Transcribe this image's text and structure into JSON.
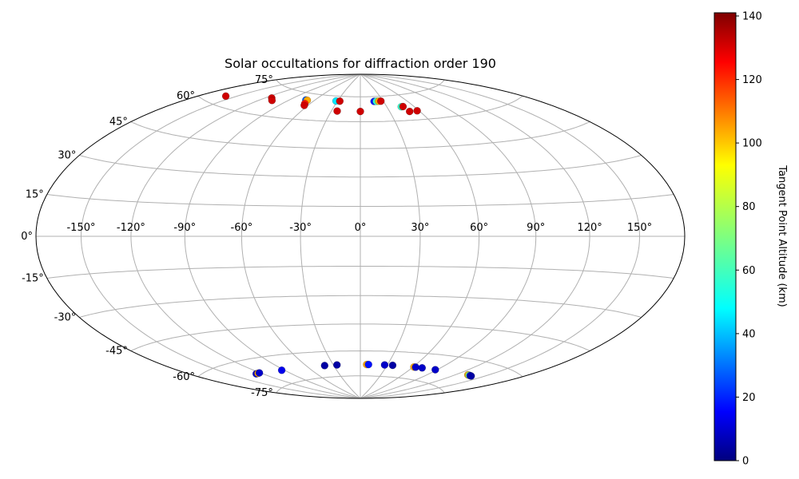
{
  "chart_data": {
    "type": "scatter",
    "projection": "hammer",
    "title": "Solar occultations for diffraction order 190",
    "lon_ticks": [
      -150,
      -120,
      -90,
      -60,
      -30,
      0,
      30,
      60,
      90,
      120,
      150
    ],
    "lon_tick_labels": [
      "-150°",
      "-120°",
      "-90°",
      "-60°",
      "-30°",
      "0°",
      "30°",
      "60°",
      "90°",
      "120°",
      "150°"
    ],
    "lat_ticks": [
      -75,
      -60,
      -45,
      -30,
      -15,
      0,
      15,
      30,
      45,
      60,
      75
    ],
    "lat_tick_labels": [
      "-75°",
      "-60°",
      "-45°",
      "-30°",
      "-15°",
      "0°",
      "15°",
      "30°",
      "45°",
      "60°",
      "75°"
    ],
    "grid": true,
    "colorbar": {
      "label": "Tangent Point Altitude (km)",
      "min": 0,
      "max": 141,
      "ticks": [
        0,
        20,
        40,
        60,
        80,
        100,
        120,
        140
      ],
      "tick_labels": [
        "0",
        "20",
        "40",
        "60",
        "80",
        "100",
        "120",
        "140"
      ],
      "colormap": "jet"
    },
    "points": [
      {
        "lon": -159,
        "lat": 64,
        "alt": 130
      },
      {
        "lon": -113,
        "lat": 69,
        "alt": 130
      },
      {
        "lon": -107,
        "lat": 68,
        "alt": 130
      },
      {
        "lon": -71,
        "lat": 71,
        "alt": 30
      },
      {
        "lon": -69,
        "lat": 71,
        "alt": 100
      },
      {
        "lon": -66,
        "lat": 69,
        "alt": 120
      },
      {
        "lon": -64,
        "lat": 68,
        "alt": 130
      },
      {
        "lon": -32,
        "lat": 72,
        "alt": 50
      },
      {
        "lon": -27,
        "lat": 72,
        "alt": 130
      },
      {
        "lon": -24,
        "lat": 66,
        "alt": 130
      },
      {
        "lon": 0,
        "lat": 66,
        "alt": 130
      },
      {
        "lon": 18,
        "lat": 72,
        "alt": 20
      },
      {
        "lon": 21,
        "lat": 72,
        "alt": 60
      },
      {
        "lon": 24,
        "lat": 72,
        "alt": 100
      },
      {
        "lon": 27,
        "lat": 72,
        "alt": 130
      },
      {
        "lon": 46,
        "lat": 68,
        "alt": 60
      },
      {
        "lon": 48,
        "lat": 68,
        "alt": 130
      },
      {
        "lon": 50,
        "lat": 65,
        "alt": 130
      },
      {
        "lon": 58,
        "lat": 65,
        "alt": 130
      },
      {
        "lon": -126,
        "lat": -67,
        "alt": 10
      },
      {
        "lon": -123,
        "lat": -67,
        "alt": 100
      },
      {
        "lon": -121,
        "lat": -67,
        "alt": 10
      },
      {
        "lon": -93,
        "lat": -68,
        "alt": 15
      },
      {
        "lon": -40,
        "lat": -68,
        "alt": 5
      },
      {
        "lon": -26,
        "lat": -68,
        "alt": 5
      },
      {
        "lon": 7,
        "lat": -68,
        "alt": 100
      },
      {
        "lon": 9,
        "lat": -68,
        "alt": 20
      },
      {
        "lon": 27,
        "lat": -68,
        "alt": 10
      },
      {
        "lon": 36,
        "lat": -68,
        "alt": 5
      },
      {
        "lon": 61,
        "lat": -68,
        "alt": 100
      },
      {
        "lon": 63,
        "lat": -68,
        "alt": 10
      },
      {
        "lon": 71,
        "lat": -68,
        "alt": 10
      },
      {
        "lon": 88,
        "lat": -68,
        "alt": 10
      },
      {
        "lon": 132,
        "lat": -67,
        "alt": 100
      },
      {
        "lon": 134,
        "lat": -67,
        "alt": 70
      },
      {
        "lon": 136,
        "lat": -67,
        "alt": 15
      },
      {
        "lon": 138,
        "lat": -67,
        "alt": 5
      }
    ]
  }
}
